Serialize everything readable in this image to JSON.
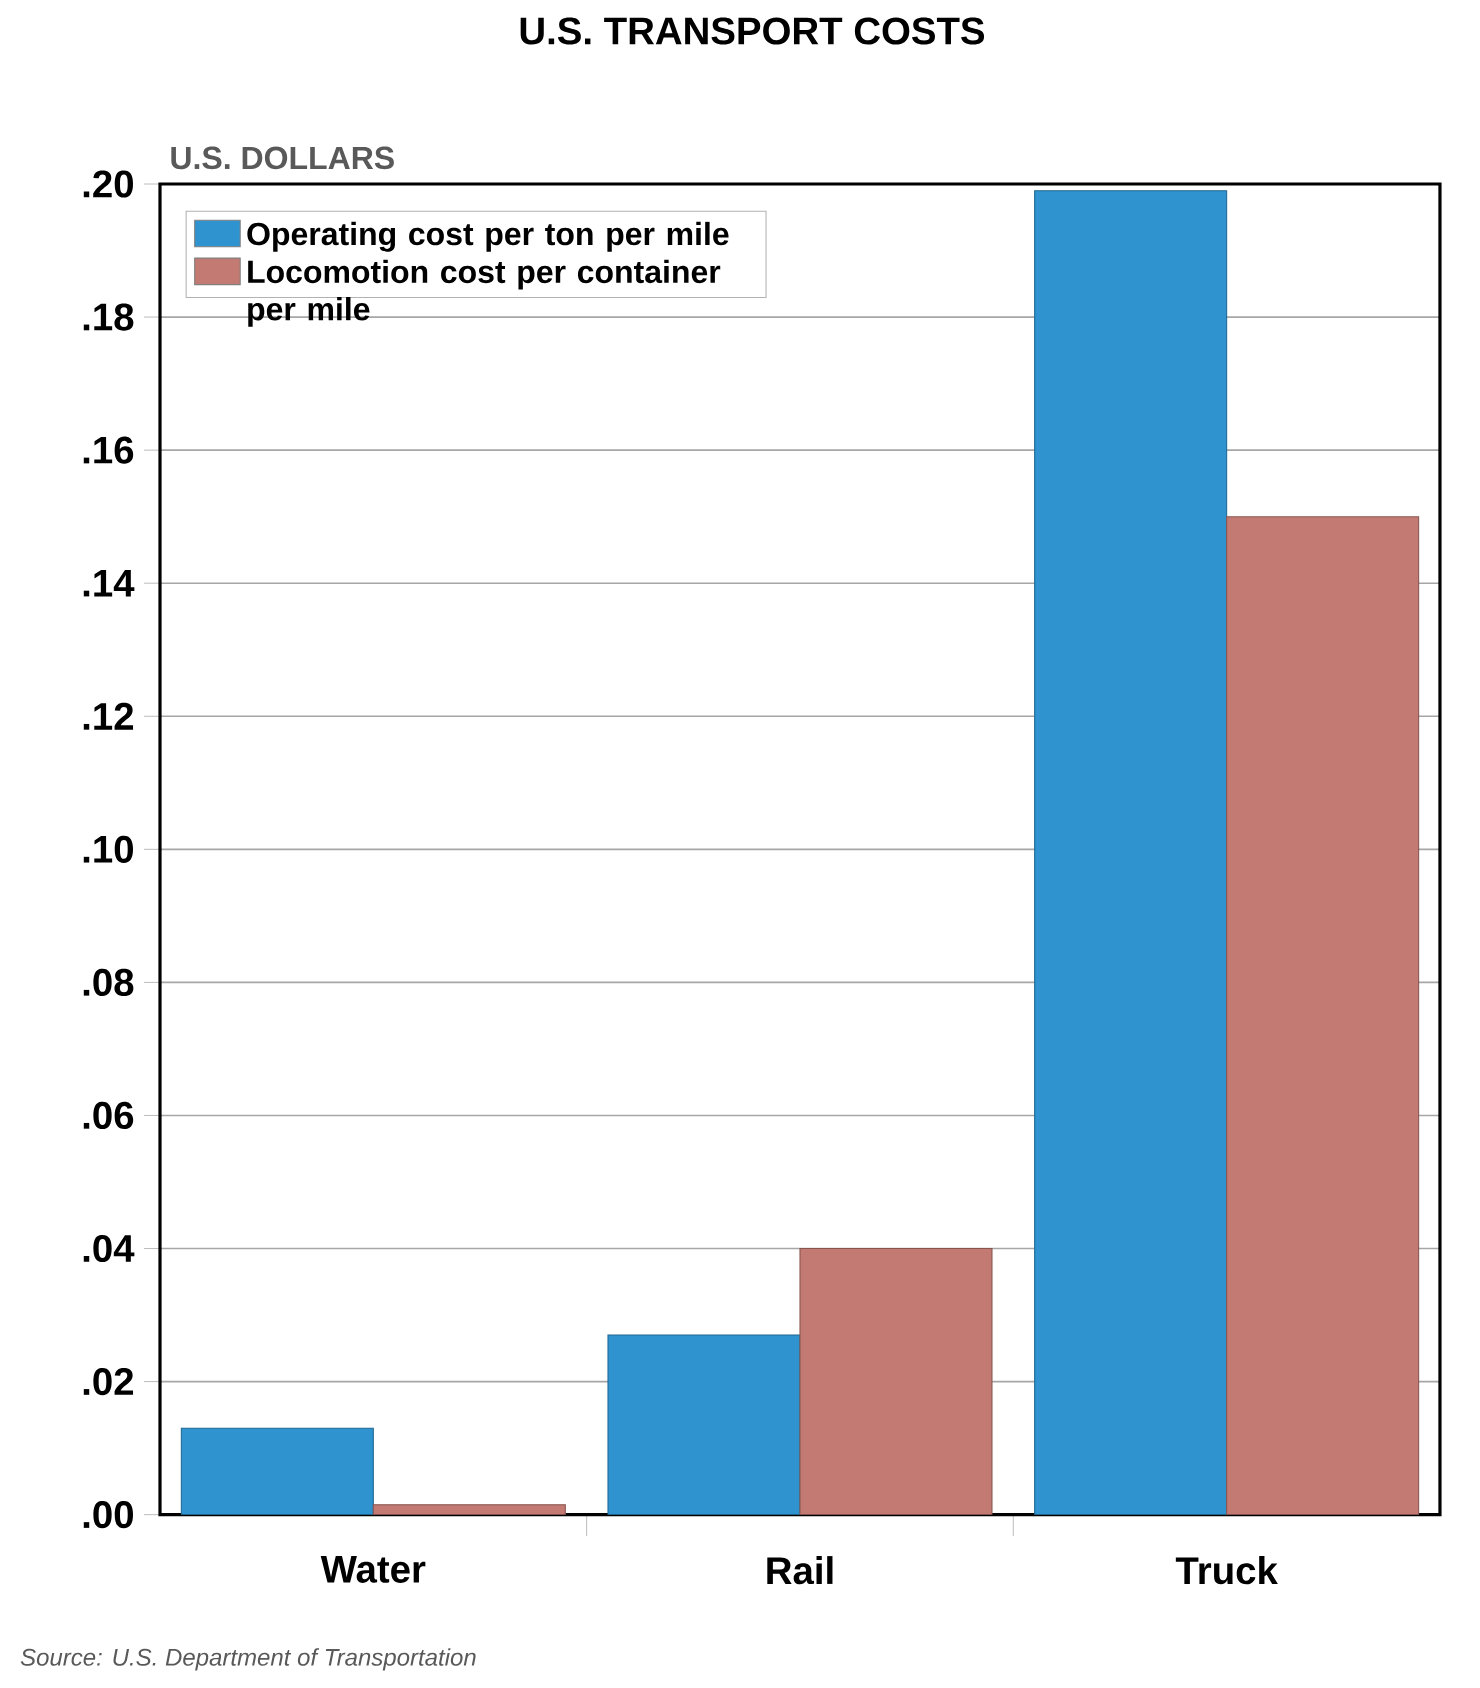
{
  "chart_data": {
    "type": "bar",
    "title": "U.S. TRANSPORT COSTS",
    "ylabel": "U.S. DOLLARS",
    "categories": [
      "Water",
      "Rail",
      "Truck"
    ],
    "series": [
      {
        "name": "Operating cost per ton per mile",
        "color": "#2e93cf",
        "values": [
          0.013,
          0.027,
          0.199
        ]
      },
      {
        "name": "Locomotion cost per container per mile",
        "color": "#c27a72",
        "values": [
          0.0015,
          0.04,
          0.15
        ]
      }
    ],
    "ylim": [
      0,
      0.2
    ],
    "yticks": [
      {
        "value": 0,
        "label": ".00"
      },
      {
        "value": 0.02,
        "label": ".02"
      },
      {
        "value": 0.04,
        "label": ".04"
      },
      {
        "value": 0.06,
        "label": ".06"
      },
      {
        "value": 0.08,
        "label": ".08"
      },
      {
        "value": 0.1,
        "label": ".10"
      },
      {
        "value": 0.12,
        "label": ".12"
      },
      {
        "value": 0.14,
        "label": ".14"
      },
      {
        "value": 0.16,
        "label": ".16"
      },
      {
        "value": 0.18,
        "label": ".18"
      },
      {
        "value": 0.2,
        "label": ".20"
      }
    ],
    "grid": "y",
    "legend": "top left",
    "annotations": [
      "Source: U.S. Department of Transportation"
    ]
  }
}
